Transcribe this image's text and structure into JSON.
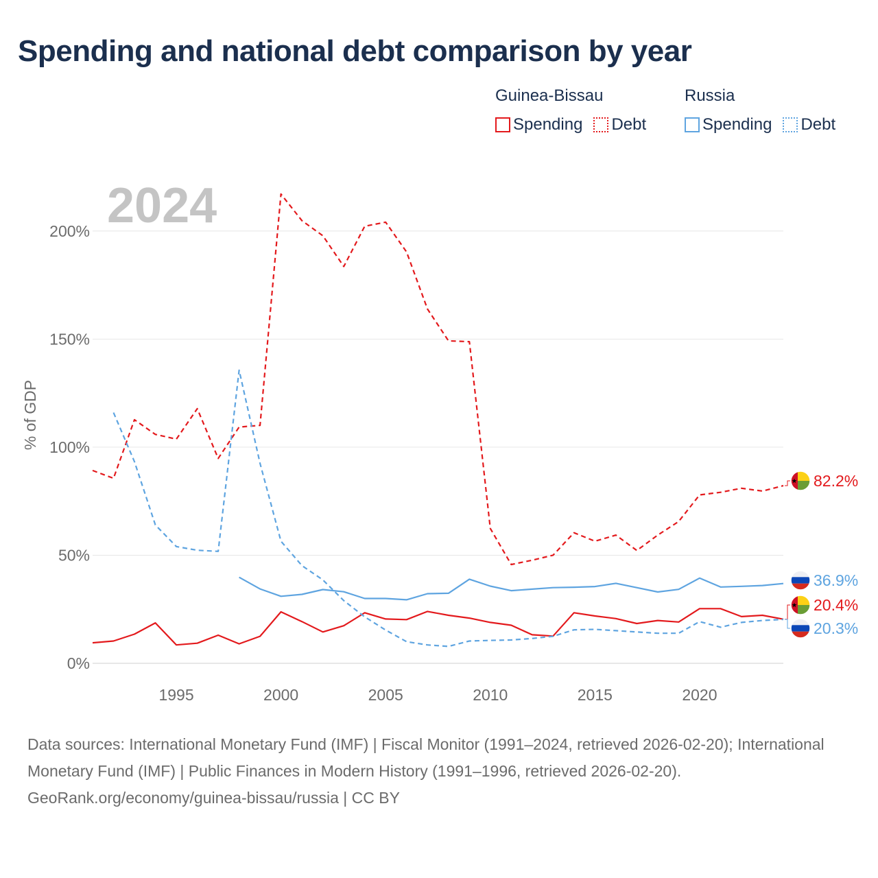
{
  "chart_data": {
    "type": "line",
    "title": "Spending and national debt comparison by year",
    "year_label": "2024",
    "ylabel": "% of GDP",
    "xlim": [
      1991,
      2024
    ],
    "ylim": [
      0,
      225
    ],
    "y_ticks": [
      {
        "value": 0,
        "label": "0%"
      },
      {
        "value": 50,
        "label": "50%"
      },
      {
        "value": 100,
        "label": "100%"
      },
      {
        "value": 150,
        "label": "150%"
      },
      {
        "value": 200,
        "label": "200%"
      }
    ],
    "x_ticks": [
      {
        "value": 1995,
        "label": "1995"
      },
      {
        "value": 2000,
        "label": "2000"
      },
      {
        "value": 2005,
        "label": "2005"
      },
      {
        "value": 2010,
        "label": "2010"
      },
      {
        "value": 2015,
        "label": "2015"
      },
      {
        "value": 2020,
        "label": "2020"
      }
    ],
    "legend": {
      "groups": [
        {
          "name": "Guinea-Bissau",
          "spending_label": "Spending",
          "debt_label": "Debt"
        },
        {
          "name": "Russia",
          "spending_label": "Spending",
          "debt_label": "Debt"
        }
      ]
    },
    "series": [
      {
        "name": "Guinea-Bissau Spending",
        "color": "#e3191c",
        "dash": "solid",
        "end_label": "20.4%",
        "points": [
          [
            1991,
            9.5
          ],
          [
            1992,
            10.3
          ],
          [
            1993,
            13.5
          ],
          [
            1994,
            18.7
          ],
          [
            1995,
            8.5
          ],
          [
            1996,
            9.3
          ],
          [
            1997,
            13.0
          ],
          [
            1998,
            9.0
          ],
          [
            1999,
            12.5
          ],
          [
            2000,
            23.8
          ],
          [
            2001,
            19.3
          ],
          [
            2002,
            14.5
          ],
          [
            2003,
            17.4
          ],
          [
            2004,
            23.4
          ],
          [
            2005,
            20.5
          ],
          [
            2006,
            20.2
          ],
          [
            2007,
            24.0
          ],
          [
            2008,
            22.2
          ],
          [
            2009,
            20.9
          ],
          [
            2010,
            18.9
          ],
          [
            2011,
            17.6
          ],
          [
            2012,
            13.2
          ],
          [
            2013,
            12.6
          ],
          [
            2014,
            23.4
          ],
          [
            2015,
            21.9
          ],
          [
            2016,
            20.7
          ],
          [
            2017,
            18.4
          ],
          [
            2018,
            19.8
          ],
          [
            2019,
            19.1
          ],
          [
            2020,
            25.3
          ],
          [
            2021,
            25.3
          ],
          [
            2022,
            21.6
          ],
          [
            2023,
            22.2
          ],
          [
            2024,
            20.4
          ]
        ]
      },
      {
        "name": "Guinea-Bissau Debt",
        "color": "#e3191c",
        "dash": "dashed",
        "end_label": "82.2%",
        "points": [
          [
            1991,
            89.2
          ],
          [
            1992,
            85.6
          ],
          [
            1993,
            112.7
          ],
          [
            1994,
            105.9
          ],
          [
            1995,
            103.7
          ],
          [
            1996,
            117.8
          ],
          [
            1997,
            94.8
          ],
          [
            1998,
            109.3
          ],
          [
            1999,
            110.1
          ],
          [
            2000,
            217.1
          ],
          [
            2001,
            204.8
          ],
          [
            2002,
            197.8
          ],
          [
            2003,
            183.6
          ],
          [
            2004,
            202.2
          ],
          [
            2005,
            204.1
          ],
          [
            2006,
            190.3
          ],
          [
            2007,
            163.9
          ],
          [
            2008,
            149.2
          ],
          [
            2009,
            148.8
          ],
          [
            2010,
            62.4
          ],
          [
            2011,
            45.7
          ],
          [
            2012,
            47.7
          ],
          [
            2013,
            50.0
          ],
          [
            2014,
            60.4
          ],
          [
            2015,
            56.5
          ],
          [
            2016,
            59.3
          ],
          [
            2017,
            52.2
          ],
          [
            2018,
            59.3
          ],
          [
            2019,
            65.6
          ],
          [
            2020,
            77.9
          ],
          [
            2021,
            79.1
          ],
          [
            2022,
            81.0
          ],
          [
            2023,
            79.7
          ],
          [
            2024,
            82.2
          ]
        ]
      },
      {
        "name": "Russia Spending",
        "color": "#5ea4e0",
        "dash": "solid",
        "end_label": "36.9%",
        "points": [
          [
            1998,
            39.8
          ],
          [
            1999,
            34.4
          ],
          [
            2000,
            31.0
          ],
          [
            2001,
            31.9
          ],
          [
            2002,
            34.1
          ],
          [
            2003,
            33.1
          ],
          [
            2004,
            30.0
          ],
          [
            2005,
            30.0
          ],
          [
            2006,
            29.4
          ],
          [
            2007,
            32.2
          ],
          [
            2008,
            32.4
          ],
          [
            2009,
            38.9
          ],
          [
            2010,
            35.7
          ],
          [
            2011,
            33.6
          ],
          [
            2012,
            34.3
          ],
          [
            2013,
            35.0
          ],
          [
            2014,
            35.2
          ],
          [
            2015,
            35.5
          ],
          [
            2016,
            37.0
          ],
          [
            2017,
            35.0
          ],
          [
            2018,
            33.0
          ],
          [
            2019,
            34.2
          ],
          [
            2020,
            39.4
          ],
          [
            2021,
            35.3
          ],
          [
            2022,
            35.6
          ],
          [
            2023,
            36.0
          ],
          [
            2024,
            36.9
          ]
        ]
      },
      {
        "name": "Russia Debt",
        "color": "#5ea4e0",
        "dash": "dashed",
        "end_label": "20.3%",
        "points": [
          [
            1992,
            116.0
          ],
          [
            1993,
            93.3
          ],
          [
            1994,
            64.0
          ],
          [
            1995,
            54.0
          ],
          [
            1996,
            52.3
          ],
          [
            1997,
            51.8
          ],
          [
            1998,
            135.6
          ],
          [
            1999,
            92.5
          ],
          [
            2000,
            56.5
          ],
          [
            2001,
            45.2
          ],
          [
            2002,
            38.6
          ],
          [
            2003,
            29.0
          ],
          [
            2004,
            21.5
          ],
          [
            2005,
            15.4
          ],
          [
            2006,
            10.0
          ],
          [
            2007,
            8.5
          ],
          [
            2008,
            7.8
          ],
          [
            2009,
            10.3
          ],
          [
            2010,
            10.6
          ],
          [
            2011,
            10.8
          ],
          [
            2012,
            11.5
          ],
          [
            2013,
            12.5
          ],
          [
            2014,
            15.5
          ],
          [
            2015,
            15.7
          ],
          [
            2016,
            15.1
          ],
          [
            2017,
            14.5
          ],
          [
            2018,
            13.9
          ],
          [
            2019,
            13.9
          ],
          [
            2020,
            19.3
          ],
          [
            2021,
            16.7
          ],
          [
            2022,
            18.9
          ],
          [
            2023,
            19.8
          ],
          [
            2024,
            20.3
          ]
        ]
      }
    ]
  },
  "footer": {
    "sources": "Data sources: International Monetary Fund (IMF) | Fiscal Monitor (1991–2024, retrieved 2026-02-20); International Monetary Fund (IMF) | Public Finances in Modern History (1991–1996, retrieved 2026-02-20).",
    "credit": "GeoRank.org/economy/guinea-bissau/russia | CC BY"
  }
}
